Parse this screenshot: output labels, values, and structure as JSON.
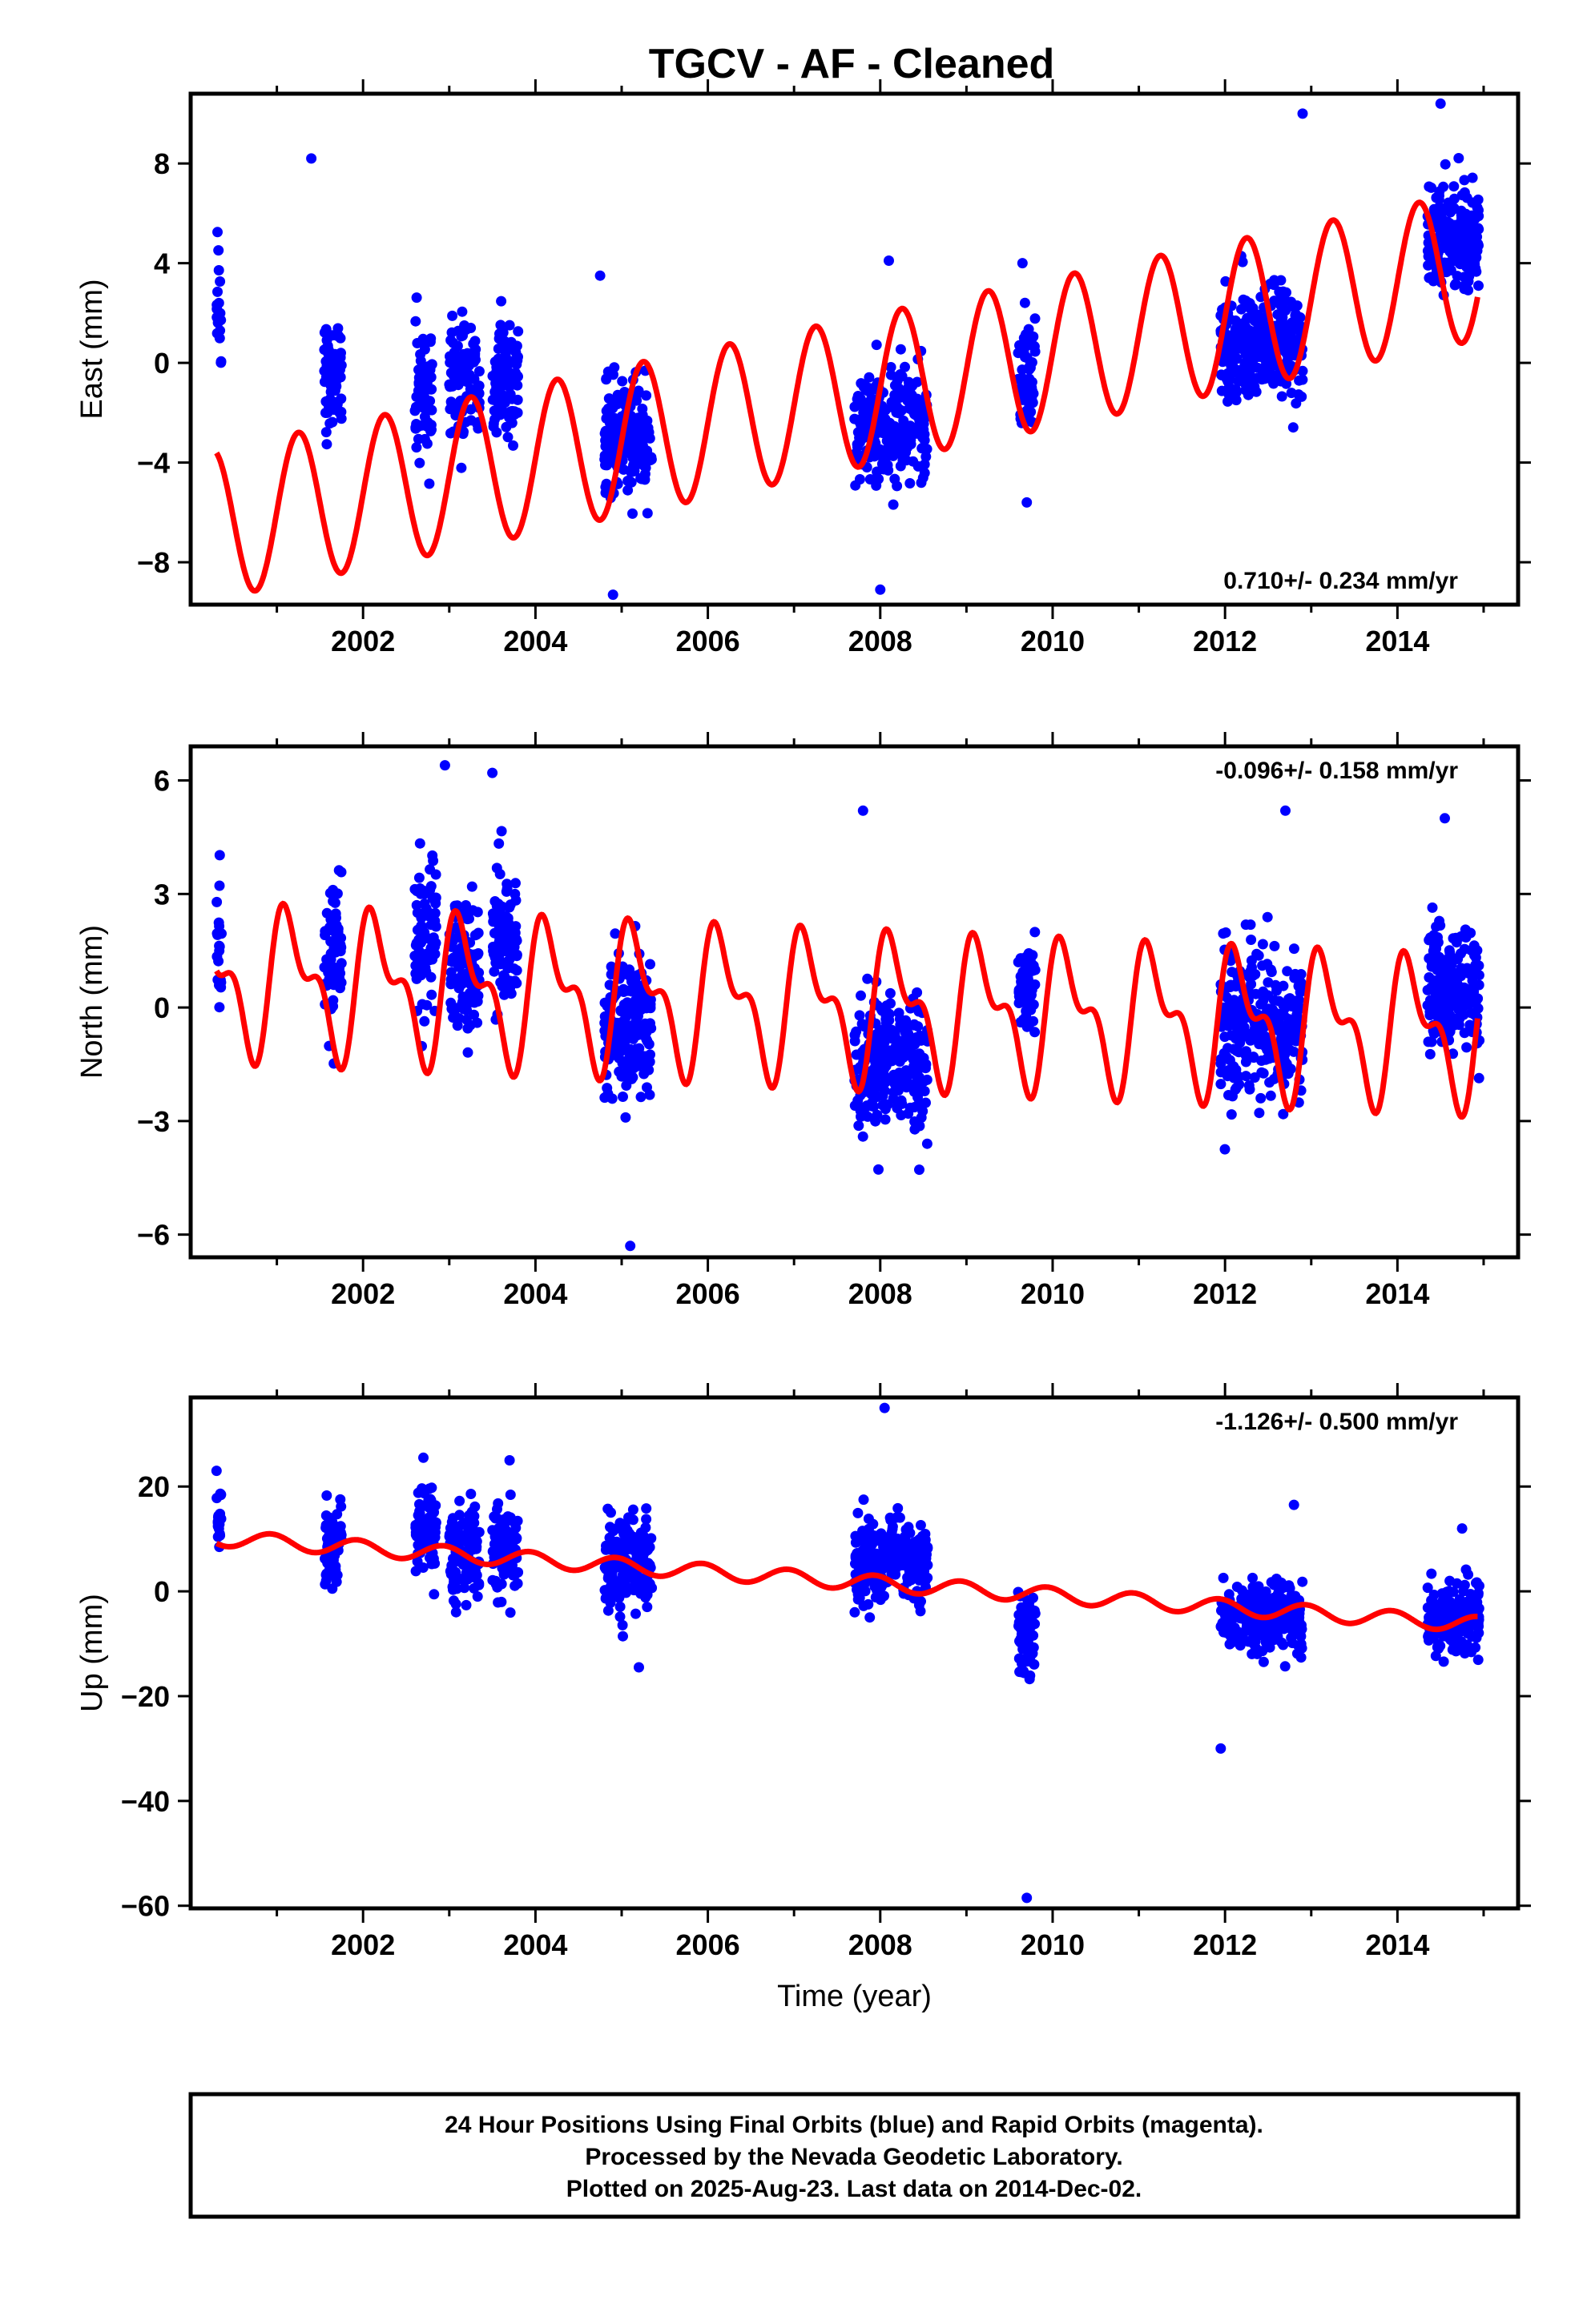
{
  "title": "TGCV  - AF - Cleaned",
  "colors": {
    "data": "#0000ff",
    "fit": "#ff0000",
    "frame": "#000000"
  },
  "footer": {
    "lines": [
      "24 Hour Positions Using Final Orbits (blue) and Rapid Orbits (magenta).",
      "Processed by the Nevada Geodetic Laboratory.",
      "Plotted on 2025-Aug-23. Last data on 2014-Dec-02."
    ]
  },
  "chart_data": [
    {
      "type": "scatter",
      "ylabel": "East (mm)",
      "xlabel": "",
      "xlim": [
        2000.0,
        2015.4
      ],
      "ylim": [
        -9.7,
        10.8
      ],
      "xticks": [
        2002,
        2004,
        2006,
        2008,
        2010,
        2012,
        2014
      ],
      "yticks": [
        8,
        4,
        0,
        -4,
        -8
      ],
      "ytick_labels": [
        "8",
        "4",
        "0",
        "−4",
        "−8"
      ],
      "rate": "0.710+/- 0.234 mm/yr",
      "rate_position": "bottom-right",
      "fit": {
        "rate": 0.71,
        "intercept_2008": -1.0,
        "annual_amp": 3.0,
        "annual_phase": 0.0,
        "semi_amp": 0.0,
        "semi_phase": 0.0
      },
      "series": [
        {
          "name": "Final Orbits",
          "color": "#0000ff",
          "clusters": [
            {
              "x": [
                2000.3,
                2000.36
              ],
              "center": 2.0,
              "spread": 3.0
            },
            {
              "x": [
                2001.55,
                2001.75
              ],
              "center": -0.5,
              "spread": 2.0
            },
            {
              "x": [
                2002.6,
                2002.8
              ],
              "center": -1.0,
              "spread": 2.0
            },
            {
              "x": [
                2003.0,
                2003.35
              ],
              "center": -0.5,
              "spread": 2.0
            },
            {
              "x": [
                2003.5,
                2003.8
              ],
              "center": -0.8,
              "spread": 2.0
            },
            {
              "x": [
                2004.8,
                2005.35
              ],
              "center": -3.0,
              "spread": 2.0
            },
            {
              "x": [
                2007.7,
                2008.55
              ],
              "center": -2.5,
              "spread": 2.0
            },
            {
              "x": [
                2009.6,
                2009.8
              ],
              "center": -0.5,
              "spread": 2.0
            },
            {
              "x": [
                2011.95,
                2012.9
              ],
              "center": 0.8,
              "spread": 2.0
            },
            {
              "x": [
                2014.35,
                2014.95
              ],
              "center": 5.0,
              "spread": 2.0
            }
          ],
          "outliers": [
            {
              "x": 2001.4,
              "y": 8.2
            },
            {
              "x": 2004.9,
              "y": -9.3
            },
            {
              "x": 2008.0,
              "y": -9.1
            },
            {
              "x": 2012.9,
              "y": 10.0
            },
            {
              "x": 2014.5,
              "y": 10.4
            },
            {
              "x": 2008.1,
              "y": 4.1
            },
            {
              "x": 2009.65,
              "y": 4.0
            },
            {
              "x": 2004.75,
              "y": 3.5
            },
            {
              "x": 2009.7,
              "y": -5.6
            }
          ]
        }
      ]
    },
    {
      "type": "scatter",
      "ylabel": "North (mm)",
      "xlabel": "",
      "xlim": [
        2000.0,
        2015.4
      ],
      "ylim": [
        -6.6,
        6.9
      ],
      "xticks": [
        2002,
        2004,
        2006,
        2008,
        2010,
        2012,
        2014
      ],
      "yticks": [
        6,
        3,
        0,
        -3,
        -6
      ],
      "ytick_labels": [
        "6",
        "3",
        "0",
        "−3",
        "−6"
      ],
      "rate": "-0.096+/- 0.158 mm/yr",
      "rate_position": "top-right",
      "fit": {
        "rate": -0.096,
        "intercept_2008": 0.0,
        "annual_amp": 1.6,
        "annual_phase": 0.5,
        "semi_amp": 0.9,
        "semi_phase": 1.2
      },
      "series": [
        {
          "name": "Final Orbits",
          "color": "#0000ff",
          "clusters": [
            {
              "x": [
                2000.3,
                2000.36
              ],
              "center": 1.5,
              "spread": 1.8
            },
            {
              "x": [
                2001.55,
                2001.75
              ],
              "center": 1.5,
              "spread": 1.8
            },
            {
              "x": [
                2002.6,
                2002.85
              ],
              "center": 2.0,
              "spread": 2.0
            },
            {
              "x": [
                2003.0,
                2003.35
              ],
              "center": 1.0,
              "spread": 1.8
            },
            {
              "x": [
                2003.5,
                2003.8
              ],
              "center": 2.0,
              "spread": 1.8
            },
            {
              "x": [
                2004.8,
                2005.35
              ],
              "center": -0.5,
              "spread": 1.8
            },
            {
              "x": [
                2007.7,
                2008.55
              ],
              "center": -1.5,
              "spread": 1.6
            },
            {
              "x": [
                2009.6,
                2009.8
              ],
              "center": 0.5,
              "spread": 1.0
            },
            {
              "x": [
                2011.95,
                2012.9
              ],
              "center": -0.5,
              "spread": 1.8
            },
            {
              "x": [
                2014.35,
                2014.95
              ],
              "center": 0.5,
              "spread": 1.6
            }
          ],
          "outliers": [
            {
              "x": 2005.1,
              "y": -6.3
            },
            {
              "x": 2007.8,
              "y": 5.2
            },
            {
              "x": 2012.7,
              "y": 5.2
            },
            {
              "x": 2014.55,
              "y": 5.0
            },
            {
              "x": 2003.5,
              "y": 6.2
            },
            {
              "x": 2002.95,
              "y": 6.4
            }
          ]
        }
      ]
    },
    {
      "type": "scatter",
      "ylabel": "Up (mm)",
      "xlabel": "Time (year)",
      "xlim": [
        2000.0,
        2015.4
      ],
      "ylim": [
        -60.5,
        37.0
      ],
      "xticks": [
        2002,
        2004,
        2006,
        2008,
        2010,
        2012,
        2014
      ],
      "yticks": [
        20,
        0,
        -20,
        -40,
        -60
      ],
      "ytick_labels": [
        "20",
        "0",
        "−20",
        "−40",
        "−60"
      ],
      "rate": "-1.126+/- 0.500 mm/yr",
      "rate_position": "top-right",
      "fit": {
        "rate": -1.126,
        "intercept_2008": 1.5,
        "annual_amp": 1.5,
        "annual_phase": 2.0,
        "semi_amp": 0.0,
        "semi_phase": 0.0
      },
      "series": [
        {
          "name": "Final Orbits",
          "color": "#0000ff",
          "clusters": [
            {
              "x": [
                2000.3,
                2000.36
              ],
              "center": 14.0,
              "spread": 6.0
            },
            {
              "x": [
                2001.55,
                2001.75
              ],
              "center": 9.0,
              "spread": 7.0
            },
            {
              "x": [
                2002.6,
                2002.85
              ],
              "center": 12.0,
              "spread": 8.0
            },
            {
              "x": [
                2003.0,
                2003.35
              ],
              "center": 7.0,
              "spread": 8.0
            },
            {
              "x": [
                2003.5,
                2003.8
              ],
              "center": 8.0,
              "spread": 8.0
            },
            {
              "x": [
                2004.8,
                2005.35
              ],
              "center": 6.0,
              "spread": 8.0
            },
            {
              "x": [
                2007.7,
                2008.55
              ],
              "center": 6.0,
              "spread": 7.0
            },
            {
              "x": [
                2009.6,
                2009.8
              ],
              "center": -9.0,
              "spread": 8.0
            },
            {
              "x": [
                2011.95,
                2012.9
              ],
              "center": -5.0,
              "spread": 6.0
            },
            {
              "x": [
                2014.35,
                2014.95
              ],
              "center": -5.0,
              "spread": 6.0
            }
          ],
          "outliers": [
            {
              "x": 2008.05,
              "y": 35.0
            },
            {
              "x": 2009.7,
              "y": -58.5
            },
            {
              "x": 2011.95,
              "y": -30.0
            },
            {
              "x": 2005.2,
              "y": -14.5
            },
            {
              "x": 2002.7,
              "y": 25.5
            },
            {
              "x": 2003.7,
              "y": 25.0
            },
            {
              "x": 2012.8,
              "y": 16.5
            },
            {
              "x": 2014.75,
              "y": 12.0
            },
            {
              "x": 2000.3,
              "y": 23.0
            }
          ]
        }
      ]
    }
  ]
}
